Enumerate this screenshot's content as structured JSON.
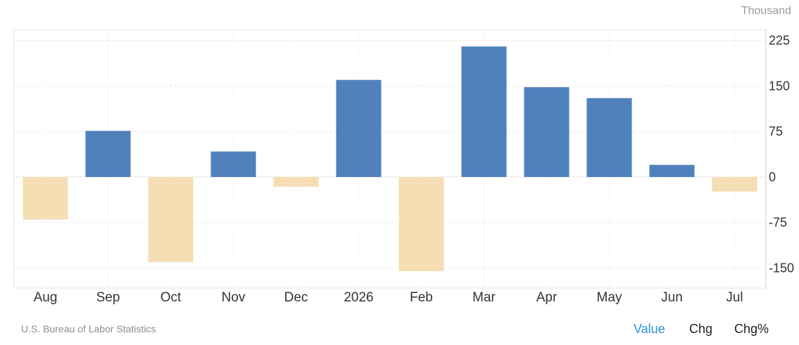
{
  "unit_label": "Thousand",
  "source": "U.S. Bureau of Labor Statistics",
  "tabs": [
    {
      "label": "Value",
      "active": true
    },
    {
      "label": "Chg",
      "active": false
    },
    {
      "label": "Chg%",
      "active": false
    }
  ],
  "colors": {
    "positive": "#4f81bd",
    "negative": "#f5deb3",
    "grid": "#e6e6e6",
    "axis": "#cccccc"
  },
  "chart_data": {
    "type": "bar",
    "categories": [
      "Aug",
      "Sep",
      "Oct",
      "Nov",
      "Dec",
      "2026",
      "Feb",
      "Mar",
      "Apr",
      "May",
      "Jun",
      "Jul"
    ],
    "values": [
      -70,
      76,
      -140,
      42,
      -16,
      160,
      -155,
      215,
      148,
      130,
      20,
      -24
    ],
    "ylim": [
      -183,
      243
    ],
    "yticks": [
      225,
      150,
      75,
      0,
      -75,
      -150
    ],
    "title": "",
    "xlabel": "",
    "ylabel": "",
    "grid": true
  }
}
